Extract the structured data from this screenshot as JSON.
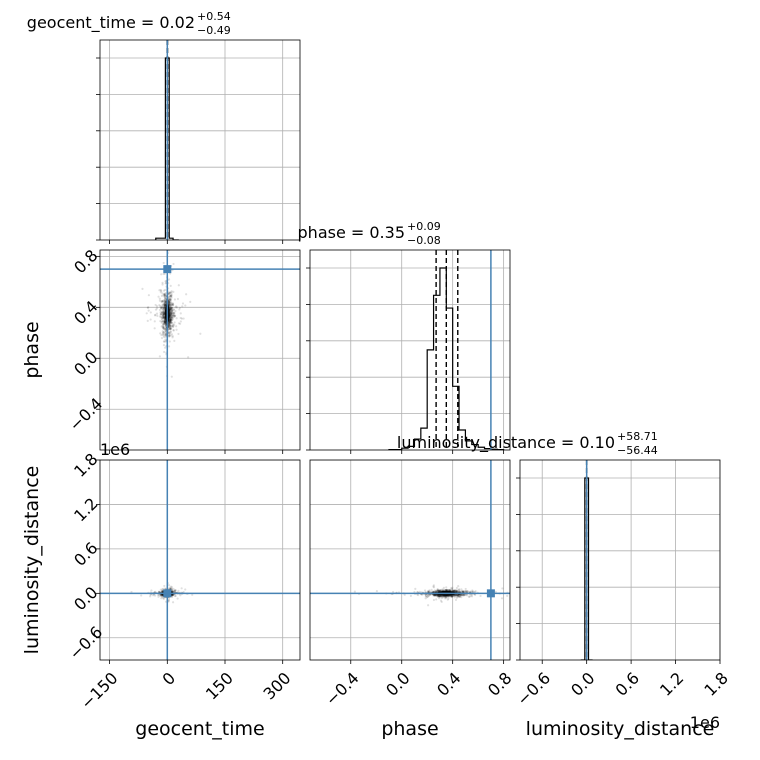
{
  "chart_data": {
    "type": "corner",
    "parameters": [
      "geocent_time",
      "phase",
      "luminosity_distance"
    ],
    "colors": {
      "truth": "#4682b4",
      "hist": "#000000",
      "grid": "#b0b0b0",
      "scatter": "#000000"
    },
    "titles": [
      {
        "param": "geocent_time",
        "text": "geocent_time = 0.02",
        "plus": "+0.54",
        "minus": "−0.49"
      },
      {
        "param": "phase",
        "text": "phase = 0.35",
        "plus": "+0.09",
        "minus": "−0.08"
      },
      {
        "param": "luminosity_distance",
        "text": "luminosity_distance = 0.10",
        "plus": "+58.71",
        "minus": "−56.44"
      }
    ],
    "truths": {
      "geocent_time": 0,
      "phase": 0.7,
      "luminosity_distance": 0
    },
    "ranges": {
      "geocent_time": [
        -175,
        345
      ],
      "phase": [
        -0.72,
        0.85
      ],
      "luminosity_distance": [
        -900000,
        1800000
      ]
    },
    "ticks": {
      "geocent_time": {
        "values": [
          -150,
          0,
          150,
          300
        ],
        "labels": [
          "−150",
          "0",
          "150",
          "300"
        ]
      },
      "phase_x": {
        "values": [
          -0.4,
          0.0,
          0.4,
          0.8
        ],
        "labels": [
          "−0.4",
          "0.0",
          "0.4",
          "0.8"
        ]
      },
      "phase_y": {
        "values": [
          -0.4,
          0.0,
          0.4,
          0.8
        ],
        "labels": [
          "−0.4",
          "0.0",
          "0.4",
          "0.8"
        ]
      },
      "luminosity_distance_y": {
        "values": [
          -600000,
          0,
          600000,
          1200000,
          1800000
        ],
        "labels": [
          "−0.6",
          "0.0",
          "0.6",
          "1.2",
          "1.8"
        ]
      },
      "luminosity_distance_x": {
        "values": [
          -600000,
          0,
          600000,
          1200000,
          1800000
        ],
        "labels": [
          "−0.6",
          "0.0",
          "0.6",
          "1.2",
          "1.8"
        ]
      }
    },
    "offset_labels": {
      "ld_y": "1e6",
      "ld_x": "1e6"
    },
    "axis_labels": {
      "x": [
        "geocent_time",
        "phase",
        "luminosity_distance"
      ],
      "y": [
        "phase",
        "luminosity_distance"
      ]
    },
    "hist_geocent_time": {
      "edges": [
        -30,
        -15,
        -5,
        5,
        15,
        30
      ],
      "counts": [
        0.01,
        0.01,
        1.0,
        0.01,
        0.0
      ]
    },
    "hist_phase": {
      "edges": [
        -0.1,
        0.0,
        0.05,
        0.1,
        0.15,
        0.2,
        0.25,
        0.3,
        0.35,
        0.4,
        0.45,
        0.5,
        0.55,
        0.6,
        0.65,
        0.7,
        0.75,
        0.8
      ],
      "counts": [
        0.002,
        0.01,
        0.02,
        0.06,
        0.12,
        0.55,
        0.85,
        1.0,
        0.78,
        0.35,
        0.11,
        0.05,
        0.03,
        0.015,
        0.008,
        0.004,
        0.002
      ]
    },
    "hist_luminosity_distance": {
      "edges": [
        -80000,
        -25000,
        25000,
        80000
      ],
      "counts": [
        0.0,
        1.0,
        0.0
      ]
    },
    "quantiles": {
      "geocent_time": [
        -0.47,
        0.02,
        0.56
      ],
      "phase": [
        0.27,
        0.35,
        0.44
      ],
      "luminosity_distance": [
        -56,
        0.1,
        59
      ]
    },
    "posterior_center": {
      "geocent_time": 0,
      "phase": 0.35,
      "luminosity_distance": 0
    },
    "posterior_spread": {
      "geocent_time": 8,
      "phase": 0.09,
      "luminosity_distance": 20000
    }
  }
}
